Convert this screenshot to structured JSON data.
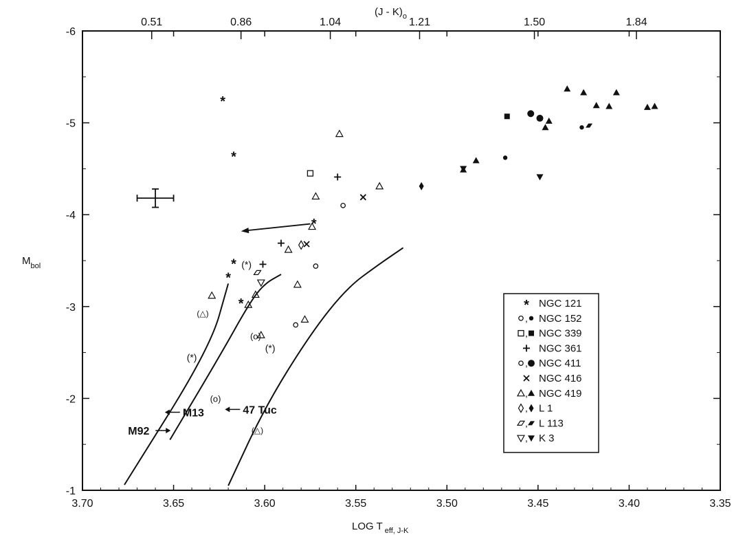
{
  "chart_data": {
    "type": "scatter",
    "title": "",
    "xlabel": "LOG T",
    "xlabel_sub": "eff, J-K",
    "ylabel": "M",
    "ylabel_sub": "bol",
    "top_label": "(J - K)",
    "top_label_sub": "o",
    "xlim": [
      3.7,
      3.35
    ],
    "ylim": [
      -1,
      -6
    ],
    "x_ticks": [
      "3.70",
      "3.65",
      "3.60",
      "3.55",
      "3.50",
      "3.45",
      "3.40",
      "3.35"
    ],
    "y_ticks": [
      "-6",
      "-5",
      "-4",
      "-3",
      "-2",
      "-1"
    ],
    "top_ticks": [
      {
        "x": 3.662,
        "label": "0.51"
      },
      {
        "x": 3.613,
        "label": "0.86"
      },
      {
        "x": 3.564,
        "label": "1.04"
      },
      {
        "x": 3.515,
        "label": "1.21"
      },
      {
        "x": 3.452,
        "label": "1.50"
      },
      {
        "x": 3.396,
        "label": "1.84"
      }
    ],
    "grid": false,
    "legend_position": "bottom-right",
    "legend": [
      {
        "symbol": "*",
        "label": "NGC 121"
      },
      {
        "symbol": "o,●",
        "label": "NGC 152"
      },
      {
        "symbol": "□,■",
        "label": "NGC 339"
      },
      {
        "symbol": "+",
        "label": "NGC 361"
      },
      {
        "symbol": "O,⬤",
        "label": "NGC 411"
      },
      {
        "symbol": "x",
        "label": "NGC 416"
      },
      {
        "symbol": "△,▲",
        "label": "NGC 419"
      },
      {
        "symbol": "◊,♦",
        "label": "L 1"
      },
      {
        "symbol": "▱,▰",
        "label": "L 113"
      },
      {
        "symbol": "▽,▼",
        "label": "K 3"
      }
    ],
    "error_bar": {
      "x": 3.66,
      "y": -4.18,
      "dx": 0.01,
      "dy": 0.1
    },
    "curves": [
      {
        "name": "M92",
        "points": [
          [
            3.677,
            -1.06
          ],
          [
            3.63,
            -2.55
          ],
          [
            3.62,
            -3.25
          ]
        ]
      },
      {
        "name": "M13",
        "points": [
          [
            3.652,
            -1.55
          ],
          [
            3.625,
            -2.45
          ],
          [
            3.608,
            -3.05
          ],
          [
            3.6,
            -3.25
          ],
          [
            3.591,
            -3.35
          ]
        ]
      },
      {
        "name": "47 Tuc",
        "points": [
          [
            3.62,
            -1.05
          ],
          [
            3.6,
            -1.9
          ],
          [
            3.575,
            -2.7
          ],
          [
            3.555,
            -3.2
          ],
          [
            3.538,
            -3.45
          ],
          [
            3.524,
            -3.64
          ]
        ]
      }
    ],
    "annotations": [
      {
        "text": "M92",
        "x": 3.675,
        "y": -1.65
      },
      {
        "text": "M13",
        "x": 3.645,
        "y": -1.85
      },
      {
        "text": "47 Tuc",
        "x": 3.612,
        "y": -1.88
      }
    ],
    "arrow": {
      "from": [
        3.575,
        -3.9
      ],
      "to": [
        3.613,
        -3.82
      ]
    },
    "series": [
      {
        "name": "NGC 121",
        "marker": "*",
        "points": [
          [
            3.623,
            -5.25
          ],
          [
            3.617,
            -4.65
          ],
          [
            3.573,
            -3.92
          ],
          [
            3.617,
            -3.48
          ],
          [
            3.62,
            -3.33
          ],
          [
            3.613,
            -3.05
          ]
        ]
      },
      {
        "name": "NGC 121",
        "marker": "(*)",
        "points": [
          [
            3.61,
            -3.46
          ],
          [
            3.597,
            -2.55
          ],
          [
            3.64,
            -2.45
          ]
        ]
      },
      {
        "name": "NGC 152",
        "marker": "o",
        "points": [
          [
            3.557,
            -4.1
          ],
          [
            3.572,
            -3.44
          ],
          [
            3.583,
            -2.8
          ]
        ]
      },
      {
        "name": "NGC 152",
        "marker": "(o)",
        "points": [
          [
            3.605,
            -2.68
          ],
          [
            3.627,
            -2.0
          ]
        ]
      },
      {
        "name": "NGC 152",
        "marker": "●",
        "points": [
          [
            3.468,
            -4.62
          ],
          [
            3.426,
            -4.95
          ]
        ]
      },
      {
        "name": "NGC 339",
        "marker": "□",
        "points": [
          [
            3.575,
            -4.45
          ]
        ]
      },
      {
        "name": "NGC 339",
        "marker": "■",
        "points": [
          [
            3.467,
            -5.07
          ]
        ]
      },
      {
        "name": "NGC 361",
        "marker": "+",
        "points": [
          [
            3.56,
            -4.41
          ],
          [
            3.591,
            -3.69
          ],
          [
            3.601,
            -3.46
          ]
        ]
      },
      {
        "name": "NGC 411",
        "marker": "⬤",
        "points": [
          [
            3.454,
            -5.1
          ],
          [
            3.449,
            -5.05
          ]
        ]
      },
      {
        "name": "NGC 416",
        "marker": "x",
        "points": [
          [
            3.546,
            -4.19
          ],
          [
            3.577,
            -3.68
          ]
        ]
      },
      {
        "name": "NGC 419",
        "marker": "△",
        "points": [
          [
            3.559,
            -4.88
          ],
          [
            3.537,
            -4.31
          ],
          [
            3.572,
            -4.2
          ],
          [
            3.574,
            -3.87
          ],
          [
            3.587,
            -3.62
          ],
          [
            3.582,
            -3.24
          ],
          [
            3.578,
            -2.86
          ],
          [
            3.602,
            -2.69
          ],
          [
            3.605,
            -3.13
          ],
          [
            3.609,
            -3.02
          ],
          [
            3.629,
            -3.12
          ]
        ]
      },
      {
        "name": "NGC 419",
        "marker": "(△)",
        "points": [
          [
            3.634,
            -2.93
          ],
          [
            3.604,
            -1.66
          ]
        ]
      },
      {
        "name": "NGC 419",
        "marker": "▲",
        "points": [
          [
            3.484,
            -4.59
          ],
          [
            3.491,
            -4.49
          ],
          [
            3.446,
            -4.95
          ],
          [
            3.444,
            -5.02
          ],
          [
            3.434,
            -5.37
          ],
          [
            3.425,
            -5.33
          ],
          [
            3.418,
            -5.19
          ],
          [
            3.411,
            -5.18
          ],
          [
            3.407,
            -5.33
          ],
          [
            3.39,
            -5.17
          ],
          [
            3.386,
            -5.18
          ]
        ]
      },
      {
        "name": "L 1",
        "marker": "◊",
        "points": [
          [
            3.58,
            -3.67
          ]
        ]
      },
      {
        "name": "L 1",
        "marker": "♦",
        "points": [
          [
            3.514,
            -4.31
          ]
        ]
      },
      {
        "name": "L 113",
        "marker": "▱",
        "points": [
          [
            3.604,
            -3.37
          ]
        ]
      },
      {
        "name": "L 113",
        "marker": "▰",
        "points": [
          [
            3.422,
            -4.97
          ]
        ]
      },
      {
        "name": "K 3",
        "marker": "▽",
        "points": [
          [
            3.602,
            -3.26
          ]
        ]
      },
      {
        "name": "K 3",
        "marker": "▼",
        "points": [
          [
            3.449,
            -4.41
          ],
          [
            3.491,
            -4.5
          ]
        ]
      }
    ]
  }
}
